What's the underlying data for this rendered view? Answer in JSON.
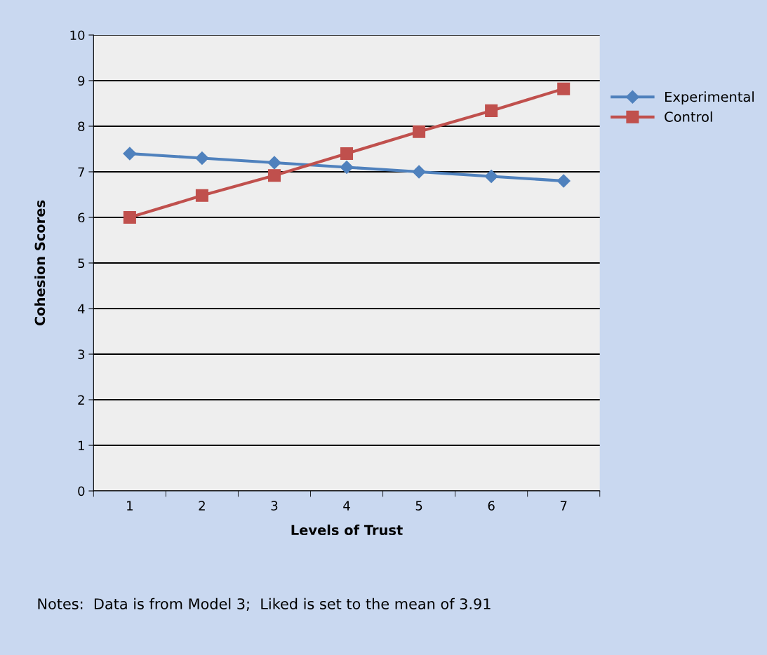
{
  "chart_data": {
    "type": "line",
    "xlabel": "Levels of Trust",
    "ylabel": "Cohesion Scores",
    "categories": [
      "1",
      "2",
      "3",
      "4",
      "5",
      "6",
      "7"
    ],
    "series": [
      {
        "name": "Experimental",
        "color": "#4f81bd",
        "marker": "diamond",
        "values": [
          7.4,
          7.3,
          7.2,
          7.1,
          7.0,
          6.9,
          6.8
        ]
      },
      {
        "name": "Control",
        "color": "#c0504d",
        "marker": "square",
        "values": [
          6.0,
          6.48,
          6.92,
          7.4,
          7.88,
          8.34,
          8.82
        ]
      }
    ],
    "ylim": [
      0,
      10
    ],
    "yticks": [
      0,
      1,
      2,
      3,
      4,
      5,
      6,
      7,
      8,
      9,
      10
    ],
    "grid": "y",
    "legend": "right",
    "line_style": "solid",
    "annotations": [
      "Notes:  Data is from Model 3;  Liked is set to the mean of 3.91"
    ]
  }
}
